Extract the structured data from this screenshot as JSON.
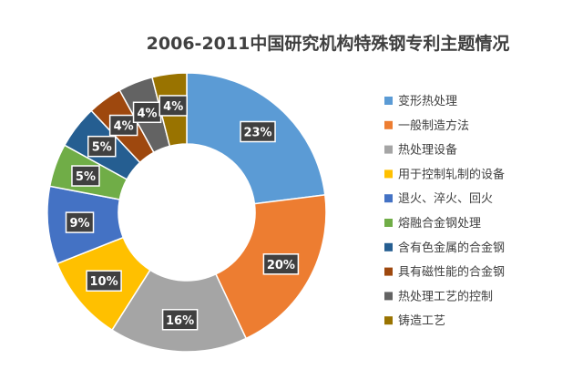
{
  "chart_data": {
    "type": "pie",
    "variant": "donut",
    "title": "2006-2011中国研究机构特殊钢专利主题情况",
    "legend_position": "right",
    "slices": [
      {
        "label": "变形热处理",
        "value": 23,
        "value_label": "23%",
        "color": "#5B9BD5"
      },
      {
        "label": "一般制造方法",
        "value": 20,
        "value_label": "20%",
        "color": "#ED7D31"
      },
      {
        "label": "热处理设备",
        "value": 16,
        "value_label": "16%",
        "color": "#A5A5A5"
      },
      {
        "label": "用于控制轧制的设备",
        "value": 10,
        "value_label": "10%",
        "color": "#FFC000"
      },
      {
        "label": "退火、淬火、回火",
        "value": 9,
        "value_label": "9%",
        "color": "#4472C4"
      },
      {
        "label": "熔融合金钢处理",
        "value": 5,
        "value_label": "5%",
        "color": "#70AD47"
      },
      {
        "label": "含有色金属的合金钢",
        "value": 5,
        "value_label": "5%",
        "color": "#255E91"
      },
      {
        "label": "具有磁性能的合金钢",
        "value": 4,
        "value_label": "4%",
        "color": "#9E480E"
      },
      {
        "label": "热处理工艺的控制",
        "value": 4,
        "value_label": "4%",
        "color": "#636363"
      },
      {
        "label": "铸造工艺",
        "value": 4,
        "value_label": "4%",
        "color": "#997300"
      }
    ]
  }
}
